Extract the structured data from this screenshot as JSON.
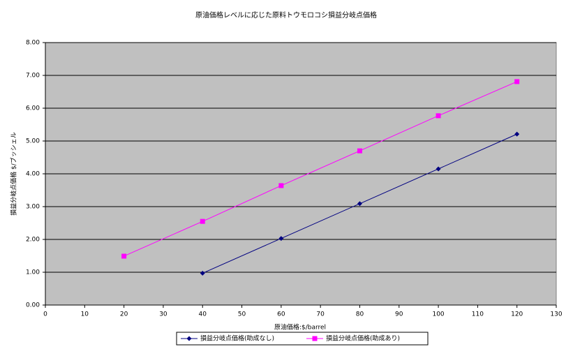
{
  "chart_data": {
    "type": "line",
    "title": "原油価格レベルに応じた原料トウモロコシ損益分岐点価格",
    "x_label": "原油価格:$/barrel",
    "y_label": "損益分岐点価格 $/ブッシェル",
    "x": [
      20,
      40,
      60,
      80,
      100,
      120
    ],
    "series": [
      {
        "name": "損益分岐点価格(助成なし)",
        "color": "#000080",
        "marker": "diamond",
        "values": [
          null,
          0.97,
          2.03,
          3.09,
          4.15,
          5.21
        ]
      },
      {
        "name": "損益分岐点価格(助成あり)",
        "color": "#ff00ff",
        "marker": "square",
        "values": [
          1.49,
          2.55,
          3.64,
          4.7,
          5.77,
          6.81
        ]
      }
    ],
    "xlim": [
      0,
      130
    ],
    "xticks": [
      0,
      10,
      20,
      30,
      40,
      50,
      60,
      70,
      80,
      90,
      100,
      110,
      120,
      130
    ],
    "ylim": [
      0,
      8
    ],
    "yticks": [
      {
        "value": 0,
        "label": "0.00"
      },
      {
        "value": 1,
        "label": "1.00"
      },
      {
        "value": 2,
        "label": "2.00"
      },
      {
        "value": 3,
        "label": "3.00"
      },
      {
        "value": 4,
        "label": "4.00"
      },
      {
        "value": 5,
        "label": "5.00"
      },
      {
        "value": 6,
        "label": "6.00"
      },
      {
        "value": 7,
        "label": "7.00"
      },
      {
        "value": 8,
        "label": "8.00"
      }
    ],
    "grid": true,
    "legend": "bottom",
    "plot_background": "#c0c0c0"
  }
}
